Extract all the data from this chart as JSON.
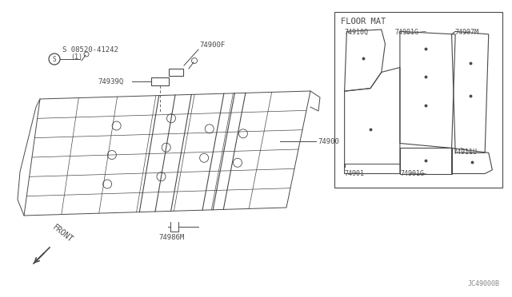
{
  "bg_color": "#ffffff",
  "line_color": "#4a4a4a",
  "text_color": "#4a4a4a",
  "watermark": "JC49000B",
  "main_labels": {
    "part_08520": "S 08520-41242",
    "part_08520_sub": "(1)",
    "part_74900F": "74900F",
    "part_749390": "74939Q",
    "part_74900": "74900",
    "part_74986M": "74986M",
    "front": "FRONT"
  },
  "inset_title": "FLOOR MAT",
  "inset_labels": {
    "74910Q": "74910Q",
    "74901G_top": "74901G",
    "74907M": "74907M",
    "74901": "74901",
    "74901G_bot": "74901G",
    "74911U": "74911U"
  }
}
